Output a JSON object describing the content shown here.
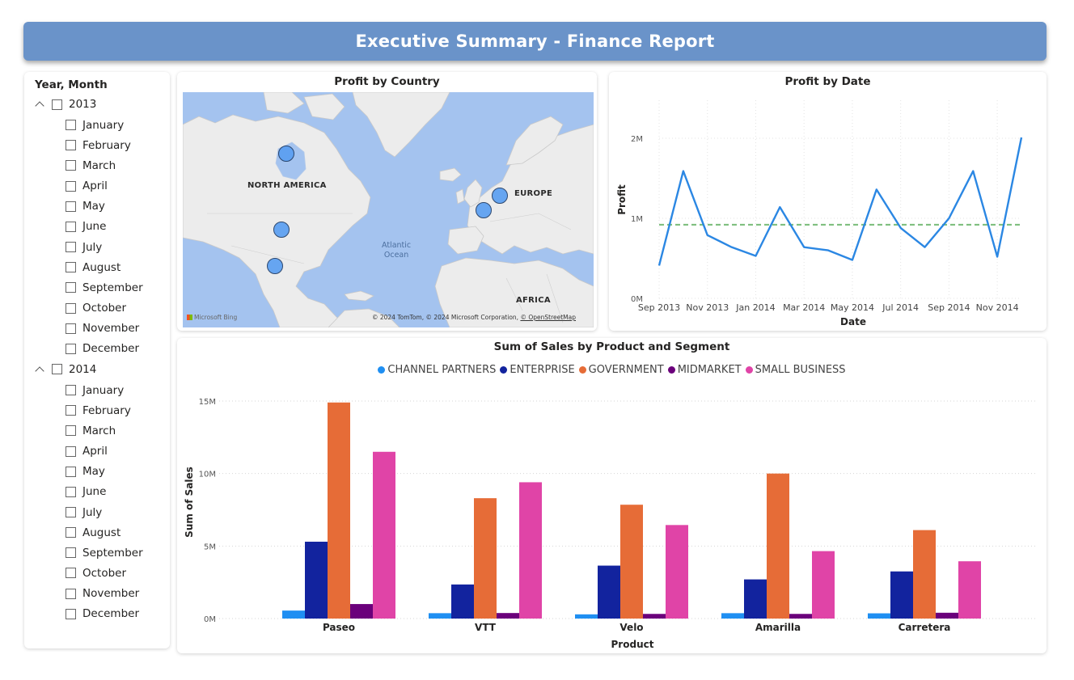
{
  "header": {
    "title": "Executive Summary - Finance Report"
  },
  "slicer": {
    "title": "Year, Month",
    "years": [
      {
        "label": "2013",
        "months": [
          "January",
          "February",
          "March",
          "April",
          "May",
          "June",
          "July",
          "August",
          "September",
          "October",
          "November",
          "December"
        ]
      },
      {
        "label": "2014",
        "months": [
          "January",
          "February",
          "March",
          "April",
          "May",
          "June",
          "July",
          "August",
          "September",
          "October",
          "November",
          "December"
        ]
      }
    ]
  },
  "map": {
    "title": "Profit by Country",
    "regions": [
      "NORTH AMERICA",
      "EUROPE",
      "AFRICA"
    ],
    "ocean": [
      "Atlantic",
      "Ocean"
    ],
    "attribution": "© 2024 TomTom, © 2024 Microsoft Corporation,",
    "attribution_link": "© OpenStreetMap",
    "logo_text": "Microsoft Bing",
    "bubble_color": "#5b9ff2"
  },
  "chart_data": [
    {
      "type": "line",
      "title": "Profit by Date",
      "xlabel": "Date",
      "ylabel": "Profit",
      "x_ticks": [
        "Sep 2013",
        "Nov 2013",
        "Jan 2014",
        "Mar 2014",
        "May 2014",
        "Jul 2014",
        "Sep 2014",
        "Nov 2014"
      ],
      "y_ticks": [
        "0M",
        "1M",
        "2M"
      ],
      "ylim": [
        0,
        2000000
      ],
      "x": [
        "2013-09",
        "2013-10",
        "2013-11",
        "2013-12",
        "2014-01",
        "2014-02",
        "2014-03",
        "2014-04",
        "2014-05",
        "2014-06",
        "2014-07",
        "2014-08",
        "2014-09",
        "2014-10",
        "2014-11",
        "2014-12"
      ],
      "values": [
        410000,
        1590000,
        790000,
        640000,
        530000,
        1140000,
        640000,
        600000,
        480000,
        1360000,
        880000,
        640000,
        1000000,
        1590000,
        520000,
        2010000
      ],
      "reference_line": {
        "value": 920000,
        "style": "dashed",
        "color": "#7fbf7f"
      },
      "line_color": "#2b87e3",
      "grid": true
    },
    {
      "type": "bar",
      "title": "Sum of Sales by Product and Segment",
      "xlabel": "Product",
      "ylabel": "Sum of Sales",
      "categories": [
        "Paseo",
        "VTT",
        "Velo",
        "Amarilla",
        "Carretera"
      ],
      "y_ticks": [
        "0M",
        "5M",
        "10M",
        "15M"
      ],
      "ylim": [
        0,
        15000000
      ],
      "legend_position": "top",
      "series": [
        {
          "name": "CHANNEL PARTNERS",
          "color": "#1f8ff2",
          "values": [
            550000,
            370000,
            290000,
            370000,
            360000
          ]
        },
        {
          "name": "ENTERPRISE",
          "color": "#12239e",
          "values": [
            5300000,
            2350000,
            3650000,
            2700000,
            3250000
          ]
        },
        {
          "name": "GOVERNMENT",
          "color": "#e66c37",
          "values": [
            14900000,
            8300000,
            7850000,
            10000000,
            6100000
          ]
        },
        {
          "name": "MIDMARKET",
          "color": "#6b007b",
          "values": [
            1000000,
            380000,
            320000,
            320000,
            400000
          ]
        },
        {
          "name": "SMALL BUSINESS",
          "color": "#e044a7",
          "values": [
            11500000,
            9400000,
            6450000,
            4650000,
            3950000
          ]
        }
      ]
    }
  ]
}
